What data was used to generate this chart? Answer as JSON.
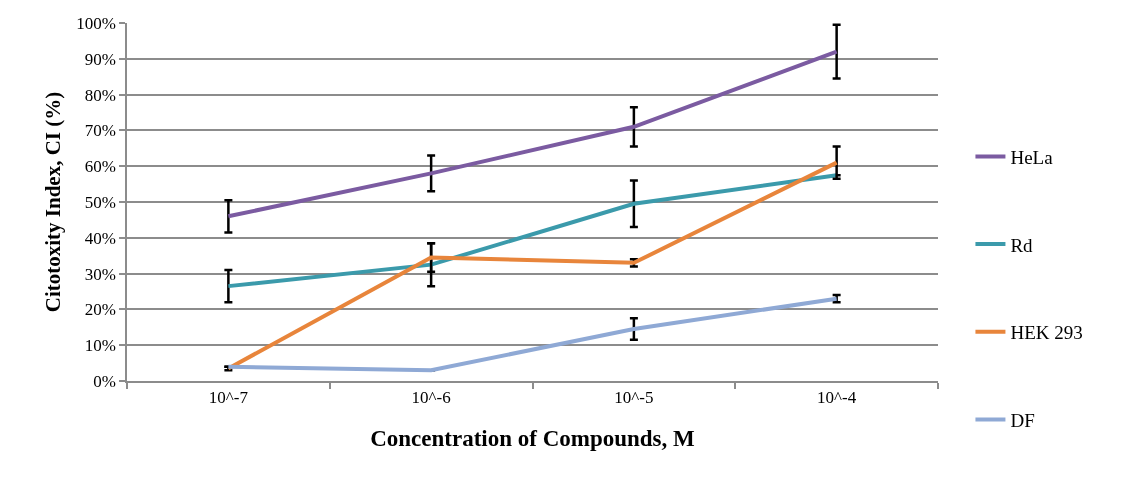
{
  "chart_data": {
    "type": "line",
    "xlabel": "Concentration of Compounds, M",
    "ylabel": "Citotoxity Index, CI (%)",
    "categories": [
      "10^-7",
      "10^-6",
      "10^-5",
      "10^-4"
    ],
    "series": [
      {
        "name": "HeLa",
        "color": "#7b5ba1",
        "values": [
          46,
          58,
          71,
          92
        ],
        "errors": [
          4.5,
          5,
          5.5,
          7.5
        ]
      },
      {
        "name": "Rd",
        "color": "#3b9aab",
        "values": [
          26.5,
          32.5,
          49.5,
          57.5
        ],
        "errors": [
          4.5,
          6,
          6.5,
          null
        ]
      },
      {
        "name": "HEK 293",
        "color": "#e8853b",
        "values": [
          3.5,
          34.5,
          33,
          61
        ],
        "errors": [
          0.5,
          4,
          1,
          4.5
        ]
      },
      {
        "name": "DF",
        "color": "#8fa9d5",
        "values": [
          4,
          3,
          14.5,
          23
        ],
        "errors": [
          null,
          null,
          3,
          1
        ]
      }
    ],
    "ylim": [
      0,
      100
    ],
    "yticks": [
      {
        "value": 0,
        "label": "0%"
      },
      {
        "value": 10,
        "label": "10%"
      },
      {
        "value": 20,
        "label": "20%"
      },
      {
        "value": 30,
        "label": "30%"
      },
      {
        "value": 40,
        "label": "40%"
      },
      {
        "value": 50,
        "label": "50%"
      },
      {
        "value": 60,
        "label": "60%"
      },
      {
        "value": 70,
        "label": "70%"
      },
      {
        "value": 80,
        "label": "80%"
      },
      {
        "value": 90,
        "label": "90%"
      },
      {
        "value": 100,
        "label": "100%"
      }
    ],
    "grid": "y",
    "legend": "right"
  }
}
